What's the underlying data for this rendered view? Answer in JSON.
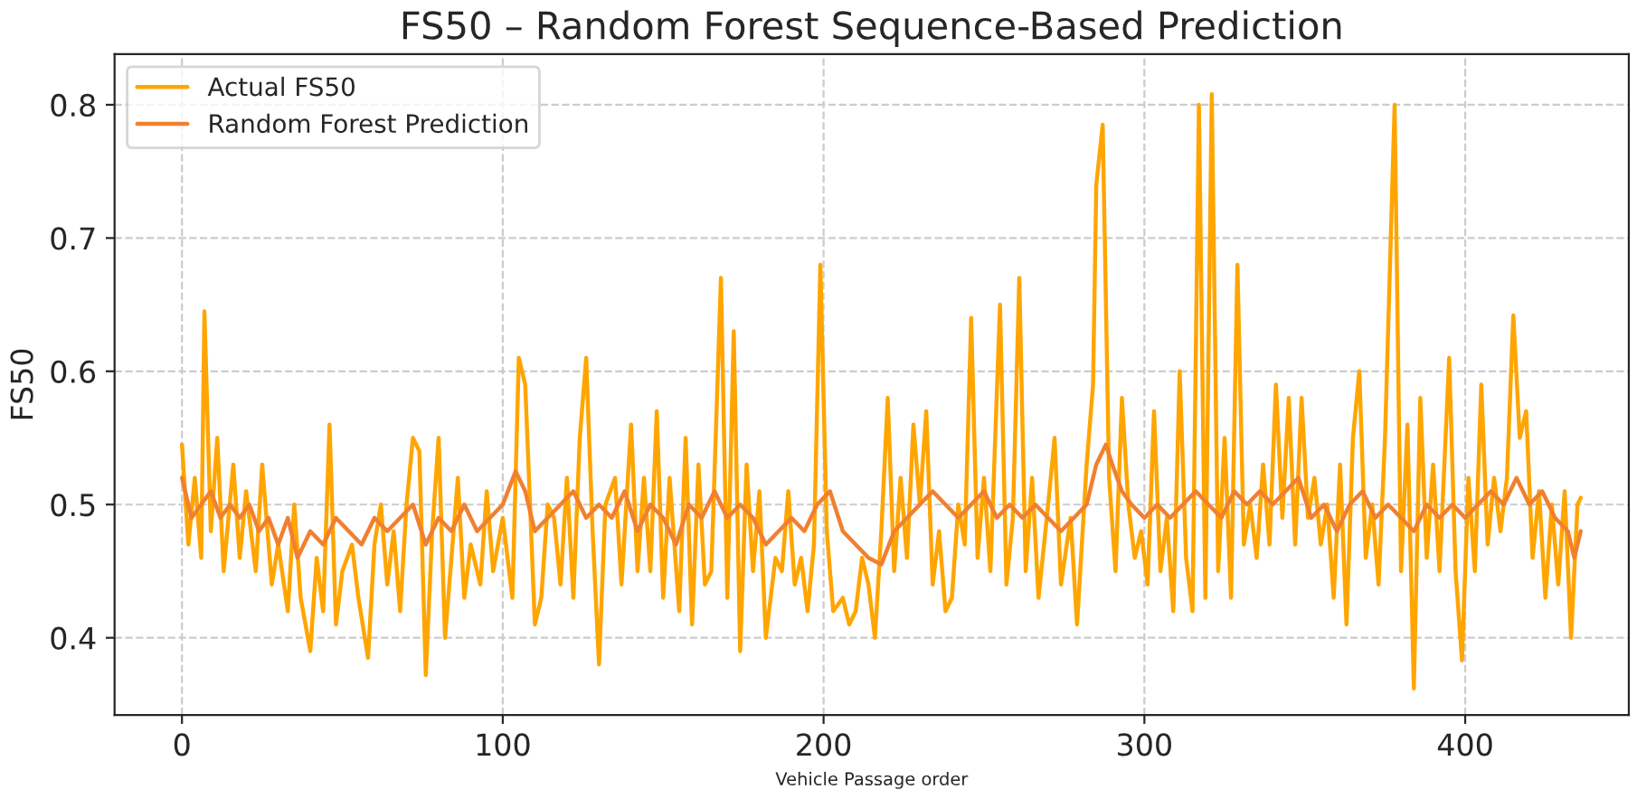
{
  "chart_data": {
    "type": "line",
    "title": "FS50 – Random Forest Sequence-Based Prediction",
    "xlabel": "Vehicle Passage order",
    "ylabel": "FS50",
    "xlim": [
      -21,
      451
    ],
    "ylim": [
      0.342,
      0.838
    ],
    "xticks": [
      0,
      100,
      200,
      300,
      400
    ],
    "yticks": [
      0.4,
      0.5,
      0.6,
      0.7,
      0.8
    ],
    "grid": true,
    "legend": "top left",
    "line_style": "solid",
    "marker": "none",
    "series": [
      {
        "name": "Actual FS50",
        "color": "#ffa500",
        "x": [
          0,
          2,
          4,
          6,
          7,
          9,
          11,
          13,
          16,
          18,
          20,
          23,
          25,
          28,
          30,
          33,
          35,
          37,
          40,
          42,
          44,
          46,
          48,
          50,
          53,
          55,
          58,
          60,
          62,
          64,
          66,
          68,
          70,
          72,
          74,
          76,
          78,
          80,
          82,
          84,
          86,
          88,
          90,
          93,
          95,
          97,
          100,
          103,
          105,
          107,
          110,
          112,
          114,
          116,
          118,
          120,
          122,
          124,
          126,
          128,
          130,
          132,
          135,
          137,
          140,
          142,
          144,
          146,
          148,
          150,
          152,
          155,
          157,
          159,
          161,
          163,
          165,
          168,
          170,
          172,
          174,
          176,
          178,
          180,
          182,
          185,
          187,
          189,
          191,
          193,
          195,
          197,
          199,
          201,
          203,
          206,
          208,
          210,
          212,
          214,
          216,
          218,
          220,
          222,
          224,
          226,
          228,
          230,
          232,
          234,
          236,
          238,
          240,
          242,
          244,
          246,
          248,
          250,
          252,
          255,
          257,
          259,
          261,
          263,
          265,
          267,
          270,
          272,
          274,
          277,
          279,
          282,
          284,
          285,
          287,
          289,
          291,
          293,
          295,
          297,
          299,
          301,
          303,
          305,
          307,
          309,
          311,
          313,
          315,
          317,
          319,
          321,
          323,
          325,
          327,
          329,
          331,
          333,
          335,
          337,
          339,
          341,
          343,
          345,
          347,
          349,
          351,
          353,
          355,
          357,
          359,
          361,
          363,
          365,
          367,
          369,
          371,
          373,
          375,
          378,
          380,
          382,
          384,
          386,
          388,
          390,
          392,
          395,
          397,
          399,
          401,
          403,
          405,
          407,
          409,
          411,
          413,
          415,
          417,
          419,
          421,
          423,
          425,
          427,
          429,
          431,
          433,
          435,
          436
        ],
        "values": [
          0.545,
          0.47,
          0.52,
          0.46,
          0.645,
          0.48,
          0.55,
          0.45,
          0.53,
          0.46,
          0.51,
          0.45,
          0.53,
          0.44,
          0.47,
          0.42,
          0.5,
          0.43,
          0.39,
          0.46,
          0.42,
          0.56,
          0.41,
          0.45,
          0.47,
          0.43,
          0.385,
          0.47,
          0.5,
          0.44,
          0.48,
          0.42,
          0.5,
          0.55,
          0.54,
          0.372,
          0.48,
          0.55,
          0.4,
          0.46,
          0.52,
          0.43,
          0.47,
          0.44,
          0.51,
          0.45,
          0.49,
          0.43,
          0.61,
          0.59,
          0.41,
          0.43,
          0.5,
          0.49,
          0.44,
          0.52,
          0.43,
          0.55,
          0.61,
          0.48,
          0.38,
          0.5,
          0.52,
          0.44,
          0.56,
          0.45,
          0.52,
          0.45,
          0.57,
          0.43,
          0.52,
          0.42,
          0.55,
          0.41,
          0.53,
          0.44,
          0.45,
          0.67,
          0.43,
          0.63,
          0.39,
          0.53,
          0.45,
          0.51,
          0.4,
          0.46,
          0.45,
          0.51,
          0.44,
          0.46,
          0.42,
          0.47,
          0.68,
          0.48,
          0.42,
          0.43,
          0.41,
          0.42,
          0.46,
          0.44,
          0.4,
          0.48,
          0.58,
          0.45,
          0.52,
          0.46,
          0.56,
          0.5,
          0.57,
          0.44,
          0.48,
          0.42,
          0.43,
          0.5,
          0.47,
          0.64,
          0.46,
          0.52,
          0.45,
          0.65,
          0.44,
          0.49,
          0.67,
          0.45,
          0.52,
          0.43,
          0.5,
          0.55,
          0.44,
          0.49,
          0.41,
          0.53,
          0.59,
          0.74,
          0.785,
          0.52,
          0.45,
          0.58,
          0.5,
          0.46,
          0.48,
          0.44,
          0.57,
          0.45,
          0.49,
          0.42,
          0.6,
          0.46,
          0.42,
          0.8,
          0.43,
          0.808,
          0.45,
          0.55,
          0.43,
          0.68,
          0.47,
          0.5,
          0.46,
          0.53,
          0.47,
          0.59,
          0.49,
          0.58,
          0.47,
          0.58,
          0.49,
          0.52,
          0.47,
          0.5,
          0.43,
          0.53,
          0.41,
          0.55,
          0.6,
          0.46,
          0.5,
          0.44,
          0.55,
          0.8,
          0.45,
          0.56,
          0.362,
          0.58,
          0.46,
          0.53,
          0.45,
          0.61,
          0.45,
          0.383,
          0.52,
          0.45,
          0.59,
          0.47,
          0.52,
          0.48,
          0.52,
          0.642,
          0.55,
          0.57,
          0.46,
          0.51,
          0.43,
          0.5,
          0.44,
          0.51,
          0.4,
          0.5,
          0.505
        ]
      },
      {
        "name": "Random Forest Prediction",
        "color": "#f08030",
        "x": [
          0,
          3,
          6,
          9,
          12,
          15,
          18,
          21,
          24,
          27,
          30,
          33,
          36,
          40,
          44,
          48,
          52,
          56,
          60,
          64,
          68,
          72,
          76,
          80,
          84,
          88,
          92,
          96,
          100,
          104,
          107,
          110,
          114,
          118,
          122,
          126,
          130,
          134,
          138,
          142,
          146,
          150,
          154,
          158,
          162,
          166,
          170,
          174,
          178,
          182,
          186,
          190,
          194,
          198,
          202,
          206,
          210,
          214,
          218,
          222,
          226,
          230,
          234,
          238,
          242,
          246,
          250,
          254,
          258,
          262,
          266,
          270,
          274,
          278,
          282,
          285,
          288,
          290,
          293,
          296,
          300,
          304,
          308,
          312,
          316,
          320,
          324,
          328,
          332,
          336,
          340,
          344,
          348,
          352,
          356,
          360,
          364,
          368,
          372,
          376,
          380,
          384,
          388,
          392,
          396,
          400,
          404,
          408,
          412,
          416,
          420,
          424,
          428,
          432,
          434,
          436
        ],
        "values": [
          0.52,
          0.49,
          0.5,
          0.51,
          0.49,
          0.5,
          0.49,
          0.5,
          0.48,
          0.49,
          0.47,
          0.49,
          0.46,
          0.48,
          0.47,
          0.49,
          0.48,
          0.47,
          0.49,
          0.48,
          0.49,
          0.5,
          0.47,
          0.49,
          0.48,
          0.5,
          0.48,
          0.49,
          0.5,
          0.525,
          0.51,
          0.48,
          0.49,
          0.5,
          0.51,
          0.49,
          0.5,
          0.49,
          0.51,
          0.48,
          0.5,
          0.49,
          0.47,
          0.5,
          0.49,
          0.51,
          0.49,
          0.5,
          0.49,
          0.47,
          0.48,
          0.49,
          0.48,
          0.5,
          0.51,
          0.48,
          0.47,
          0.46,
          0.455,
          0.48,
          0.49,
          0.5,
          0.51,
          0.5,
          0.49,
          0.5,
          0.51,
          0.49,
          0.5,
          0.49,
          0.5,
          0.49,
          0.48,
          0.49,
          0.5,
          0.53,
          0.545,
          0.53,
          0.51,
          0.5,
          0.49,
          0.5,
          0.49,
          0.5,
          0.51,
          0.5,
          0.49,
          0.51,
          0.5,
          0.51,
          0.5,
          0.51,
          0.52,
          0.49,
          0.5,
          0.48,
          0.5,
          0.51,
          0.49,
          0.5,
          0.49,
          0.48,
          0.5,
          0.49,
          0.5,
          0.49,
          0.5,
          0.51,
          0.5,
          0.52,
          0.5,
          0.51,
          0.49,
          0.48,
          0.46,
          0.48
        ]
      }
    ]
  }
}
